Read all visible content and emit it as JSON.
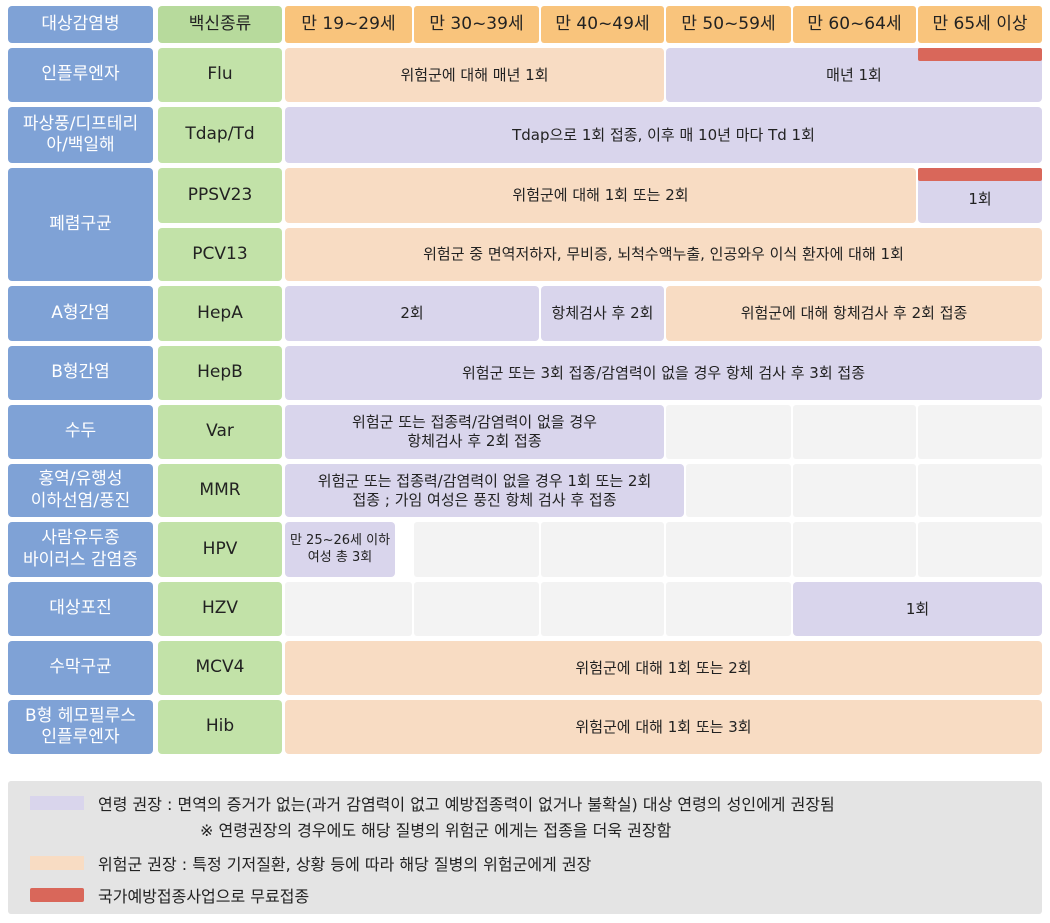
{
  "header": {
    "disease_col": "대상감염병",
    "vaccine_col": "백신종류",
    "ages": [
      "만 19~29세",
      "만 30~39세",
      "만 40~49세",
      "만 50~59세",
      "만 60~64세",
      "만 65세 이상"
    ]
  },
  "rows": [
    {
      "disease": "인플루엔자",
      "vaccine": "Flu",
      "cells": [
        "위험군에 대해 매년 1회",
        "매년 1회"
      ]
    },
    {
      "disease": "파상풍/디프테리아/백일해",
      "vaccine": "Tdap/Td",
      "cells": [
        "Tdap으로 1회 접종, 이후 매 10년 마다 Td 1회"
      ]
    },
    {
      "disease": "폐렴구균",
      "vaccine": "PPSV23",
      "cells": [
        "위험군에 대해 1회 또는 2회",
        "1회"
      ]
    },
    {
      "disease": "",
      "vaccine": "PCV13",
      "cells": [
        "위험군 중 면역저하자, 무비증, 뇌척수액누출, 인공와우 이식 환자에 대해 1회"
      ]
    },
    {
      "disease": "A형간염",
      "vaccine": "HepA",
      "cells": [
        "2회",
        "항체검사 후 2회",
        "위험군에 대해 항체검사 후 2회 접종"
      ]
    },
    {
      "disease": "B형간염",
      "vaccine": "HepB",
      "cells": [
        "위험군 또는 3회 접종/감염력이 없을 경우 항체 검사 후 3회 접종"
      ]
    },
    {
      "disease": "수두",
      "vaccine": "Var",
      "cells": [
        "위험군 또는 접종력/감염력이 없을 경우 항체검사 후 2회 접종"
      ]
    },
    {
      "disease": "홍역/유행성 이하선염/풍진",
      "vaccine": "MMR",
      "cells": [
        "위험군 또는 접종력/감염력이 없을 경우 1회 또는 2회 접종 ; 가임 여성은 풍진 항체 검사 후 접종"
      ]
    },
    {
      "disease": "사람유두종 바이러스 감염증",
      "vaccine": "HPV",
      "cells": [
        "만 25~26세 이하 여성 총 3회"
      ]
    },
    {
      "disease": "대상포진",
      "vaccine": "HZV",
      "cells": [
        "1회"
      ]
    },
    {
      "disease": "수막구균",
      "vaccine": "MCV4",
      "cells": [
        "위험군에 대해 1회 또는 2회"
      ]
    },
    {
      "disease": "B형 헤모필루스 인플루엔자",
      "vaccine": "Hib",
      "cells": [
        "위험군에 대해 1회 또는 3회"
      ]
    }
  ],
  "disease_lines": {
    "r1": [
      "파상풍/디프테리",
      "아/백일해"
    ],
    "r7": [
      "홍역/유행성",
      "이하선염/풍진"
    ],
    "r8": [
      "사람유두종",
      "바이러스 감염증"
    ],
    "r11": [
      "B형 헤모필루스",
      "인플루엔자"
    ]
  },
  "cell_lines": {
    "var": [
      "위험군 또는 접종력/감염력이 없을 경우",
      "항체검사 후 2회 접종"
    ],
    "mmr": [
      "위험군 또는 접종력/감염력이 없을 경우 1회 또는 2회",
      "접종 ; 가임 여성은 풍진 항체 검사 후 접종"
    ],
    "hpv": [
      "만 25~26세 이하",
      "여성 총 3회"
    ]
  },
  "legend": [
    {
      "swatch": "#d9d5ec",
      "text": "연령 권장 : 면역의 증거가 없는(과거 감염력이 없고 예방접종력이 없거나 불확실) 대상 연령의 성인에게 권장됨",
      "note": "※ 연령권장의 경우에도 해당 질병의 위험군 에게는 접종을 더욱 권장함"
    },
    {
      "swatch": "#f8dcc3",
      "text": "위험군 권장 : 특정 기저질환, 상황 등에 따라 해당 질병의 위험군에게 권장"
    },
    {
      "swatch": "#d9675a",
      "text": "국가예방접종사업으로 무료접종"
    }
  ],
  "colors": {
    "lavender": "#d9d5ec",
    "peach": "#f8dcc3",
    "red": "#d9675a",
    "blue": "#7fa2d6",
    "green": "#c2e2a8",
    "orange": "#f9c47c"
  }
}
